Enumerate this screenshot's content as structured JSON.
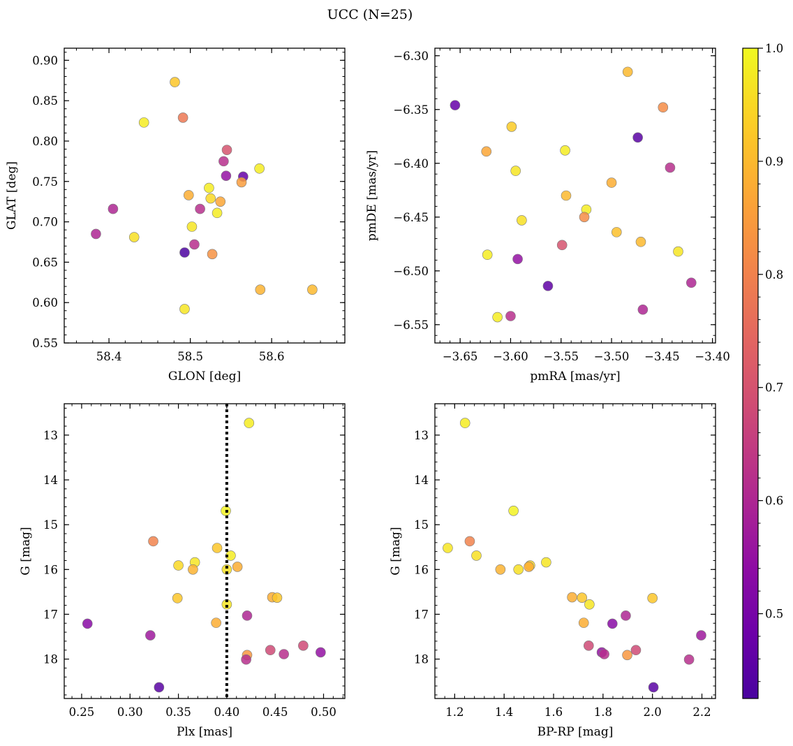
{
  "title": "UCC (N=25)",
  "colorbar": {
    "colormap": "plasma",
    "range": [
      0.425,
      1.0
    ],
    "ticks": [
      0.5,
      0.6,
      0.7,
      0.8,
      0.9,
      1.0
    ],
    "tick_labels": [
      "0.5",
      "0.6",
      "0.7",
      "0.8",
      "0.9",
      "1.0"
    ]
  },
  "chart_data": [
    {
      "type": "scatter",
      "xlabel": "GLON [deg]",
      "ylabel": "GLAT [deg]",
      "xlim": [
        58.345,
        58.69
      ],
      "ylim": [
        0.55,
        0.915
      ],
      "xticks": [
        58.4,
        58.5,
        58.6
      ],
      "xtick_labels": [
        "58.4",
        "58.5",
        "58.6"
      ],
      "yticks": [
        0.55,
        0.6,
        0.65,
        0.7,
        0.75,
        0.8,
        0.85,
        0.9
      ],
      "ytick_labels": [
        "0.55",
        "0.60",
        "0.65",
        "0.70",
        "0.75",
        "0.80",
        "0.85",
        "0.90"
      ],
      "invert_y": false,
      "points": [
        {
          "x": 58.481,
          "y": 0.873,
          "c": 0.92
        },
        {
          "x": 58.443,
          "y": 0.823,
          "c": 0.98
        },
        {
          "x": 58.491,
          "y": 0.829,
          "c": 0.78
        },
        {
          "x": 58.545,
          "y": 0.789,
          "c": 0.7
        },
        {
          "x": 58.541,
          "y": 0.775,
          "c": 0.62
        },
        {
          "x": 58.585,
          "y": 0.766,
          "c": 0.98
        },
        {
          "x": 58.565,
          "y": 0.756,
          "c": 0.47
        },
        {
          "x": 58.544,
          "y": 0.757,
          "c": 0.55
        },
        {
          "x": 58.563,
          "y": 0.749,
          "c": 0.85
        },
        {
          "x": 58.523,
          "y": 0.742,
          "c": 0.98
        },
        {
          "x": 58.498,
          "y": 0.733,
          "c": 0.88
        },
        {
          "x": 58.525,
          "y": 0.729,
          "c": 0.95
        },
        {
          "x": 58.537,
          "y": 0.725,
          "c": 0.87
        },
        {
          "x": 58.512,
          "y": 0.716,
          "c": 0.62
        },
        {
          "x": 58.405,
          "y": 0.716,
          "c": 0.6
        },
        {
          "x": 58.533,
          "y": 0.711,
          "c": 0.98
        },
        {
          "x": 58.502,
          "y": 0.694,
          "c": 0.97
        },
        {
          "x": 58.384,
          "y": 0.685,
          "c": 0.6
        },
        {
          "x": 58.431,
          "y": 0.681,
          "c": 0.96
        },
        {
          "x": 58.505,
          "y": 0.672,
          "c": 0.62
        },
        {
          "x": 58.493,
          "y": 0.662,
          "c": 0.43
        },
        {
          "x": 58.527,
          "y": 0.66,
          "c": 0.83
        },
        {
          "x": 58.586,
          "y": 0.616,
          "c": 0.89
        },
        {
          "x": 58.65,
          "y": 0.616,
          "c": 0.9
        },
        {
          "x": 58.493,
          "y": 0.592,
          "c": 0.97
        }
      ]
    },
    {
      "type": "scatter",
      "xlabel": "pmRA [mas/yr]",
      "ylabel": "pmDE [mas/yr]",
      "xlim": [
        -3.675,
        -3.397
      ],
      "ylim": [
        -6.567,
        -6.293
      ],
      "xticks": [
        -3.65,
        -3.6,
        -3.55,
        -3.5,
        -3.45,
        -3.4
      ],
      "xtick_labels": [
        "−3.65",
        "−3.60",
        "−3.55",
        "−3.50",
        "−3.45",
        "−3.40"
      ],
      "yticks": [
        -6.55,
        -6.5,
        -6.45,
        -6.4,
        -6.35,
        -6.3
      ],
      "ytick_labels": [
        "−6.55",
        "−6.50",
        "−6.45",
        "−6.40",
        "−6.35",
        "−6.30"
      ],
      "invert_y": false,
      "points": [
        {
          "x": -3.484,
          "y": -6.315,
          "c": 0.9
        },
        {
          "x": -3.655,
          "y": -6.346,
          "c": 0.47
        },
        {
          "x": -3.449,
          "y": -6.348,
          "c": 0.82
        },
        {
          "x": -3.599,
          "y": -6.366,
          "c": 0.93
        },
        {
          "x": -3.474,
          "y": -6.376,
          "c": 0.45
        },
        {
          "x": -3.624,
          "y": -6.389,
          "c": 0.87
        },
        {
          "x": -3.546,
          "y": -6.388,
          "c": 0.98
        },
        {
          "x": -3.442,
          "y": -6.404,
          "c": 0.62
        },
        {
          "x": -3.595,
          "y": -6.407,
          "c": 0.97
        },
        {
          "x": -3.5,
          "y": -6.418,
          "c": 0.88
        },
        {
          "x": -3.545,
          "y": -6.43,
          "c": 0.9
        },
        {
          "x": -3.525,
          "y": -6.443,
          "c": 0.98
        },
        {
          "x": -3.527,
          "y": -6.45,
          "c": 0.82
        },
        {
          "x": -3.589,
          "y": -6.453,
          "c": 0.96
        },
        {
          "x": -3.495,
          "y": -6.464,
          "c": 0.91
        },
        {
          "x": -3.471,
          "y": -6.473,
          "c": 0.9
        },
        {
          "x": -3.549,
          "y": -6.476,
          "c": 0.7
        },
        {
          "x": -3.434,
          "y": -6.482,
          "c": 0.97
        },
        {
          "x": -3.623,
          "y": -6.485,
          "c": 0.98
        },
        {
          "x": -3.593,
          "y": -6.489,
          "c": 0.55
        },
        {
          "x": -3.421,
          "y": -6.511,
          "c": 0.6
        },
        {
          "x": -3.563,
          "y": -6.514,
          "c": 0.46
        },
        {
          "x": -3.469,
          "y": -6.536,
          "c": 0.6
        },
        {
          "x": -3.6,
          "y": -6.542,
          "c": 0.62
        },
        {
          "x": -3.613,
          "y": -6.543,
          "c": 0.98
        }
      ]
    },
    {
      "type": "scatter",
      "xlabel": "Plx [mas]",
      "ylabel": "G [mag]",
      "xlim": [
        0.232,
        0.522
      ],
      "ylim": [
        12.3,
        18.88
      ],
      "xticks": [
        0.25,
        0.3,
        0.35,
        0.4,
        0.45,
        0.5
      ],
      "xtick_labels": [
        "0.25",
        "0.30",
        "0.35",
        "0.40",
        "0.45",
        "0.50"
      ],
      "yticks": [
        13,
        14,
        15,
        16,
        17,
        18
      ],
      "ytick_labels": [
        "13",
        "14",
        "15",
        "16",
        "17",
        "18"
      ],
      "invert_y": true,
      "vline": {
        "x": 0.4,
        "style": "dotted"
      },
      "points": [
        {
          "x": 0.423,
          "y": 12.73,
          "c": 0.98
        },
        {
          "x": 0.399,
          "y": 14.69,
          "c": 0.99
        },
        {
          "x": 0.324,
          "y": 15.37,
          "c": 0.8
        },
        {
          "x": 0.39,
          "y": 15.52,
          "c": 0.92
        },
        {
          "x": 0.404,
          "y": 15.69,
          "c": 0.98
        },
        {
          "x": 0.367,
          "y": 15.84,
          "c": 0.97
        },
        {
          "x": 0.35,
          "y": 15.91,
          "c": 0.95
        },
        {
          "x": 0.411,
          "y": 15.94,
          "c": 0.88
        },
        {
          "x": 0.365,
          "y": 16.0,
          "c": 0.89
        },
        {
          "x": 0.4,
          "y": 16.0,
          "c": 0.96
        },
        {
          "x": 0.349,
          "y": 16.64,
          "c": 0.92
        },
        {
          "x": 0.447,
          "y": 16.62,
          "c": 0.88
        },
        {
          "x": 0.452,
          "y": 16.63,
          "c": 0.92
        },
        {
          "x": 0.4,
          "y": 16.78,
          "c": 0.97
        },
        {
          "x": 0.421,
          "y": 17.03,
          "c": 0.6
        },
        {
          "x": 0.389,
          "y": 17.19,
          "c": 0.88
        },
        {
          "x": 0.256,
          "y": 17.21,
          "c": 0.53
        },
        {
          "x": 0.321,
          "y": 17.47,
          "c": 0.57
        },
        {
          "x": 0.479,
          "y": 17.7,
          "c": 0.68
        },
        {
          "x": 0.445,
          "y": 17.8,
          "c": 0.68
        },
        {
          "x": 0.497,
          "y": 17.85,
          "c": 0.55
        },
        {
          "x": 0.459,
          "y": 17.89,
          "c": 0.62
        },
        {
          "x": 0.421,
          "y": 17.91,
          "c": 0.84
        },
        {
          "x": 0.42,
          "y": 18.01,
          "c": 0.62
        },
        {
          "x": 0.33,
          "y": 18.63,
          "c": 0.45
        }
      ]
    },
    {
      "type": "scatter",
      "xlabel": "BP-RP [mag]",
      "ylabel": "G [mag]",
      "xlim": [
        1.12,
        2.255
      ],
      "ylim": [
        12.3,
        18.88
      ],
      "xticks": [
        1.2,
        1.4,
        1.6,
        1.8,
        2.0,
        2.2
      ],
      "xtick_labels": [
        "1.2",
        "1.4",
        "1.6",
        "1.8",
        "2.0",
        "2.2"
      ],
      "yticks": [
        13,
        14,
        15,
        16,
        17,
        18
      ],
      "ytick_labels": [
        "13",
        "14",
        "15",
        "16",
        "17",
        "18"
      ],
      "invert_y": true,
      "points": [
        {
          "x": 1.242,
          "y": 12.73,
          "c": 0.98
        },
        {
          "x": 1.438,
          "y": 14.69,
          "c": 0.99
        },
        {
          "x": 1.261,
          "y": 15.37,
          "c": 0.8
        },
        {
          "x": 1.172,
          "y": 15.52,
          "c": 0.97
        },
        {
          "x": 1.288,
          "y": 15.69,
          "c": 0.96
        },
        {
          "x": 1.57,
          "y": 15.84,
          "c": 0.97
        },
        {
          "x": 1.505,
          "y": 15.91,
          "c": 0.95
        },
        {
          "x": 1.5,
          "y": 15.94,
          "c": 0.88
        },
        {
          "x": 1.385,
          "y": 16.0,
          "c": 0.89
        },
        {
          "x": 1.458,
          "y": 16.0,
          "c": 0.96
        },
        {
          "x": 1.675,
          "y": 16.62,
          "c": 0.88
        },
        {
          "x": 1.715,
          "y": 16.63,
          "c": 0.92
        },
        {
          "x": 2.0,
          "y": 16.64,
          "c": 0.92
        },
        {
          "x": 1.745,
          "y": 16.78,
          "c": 0.97
        },
        {
          "x": 1.892,
          "y": 17.03,
          "c": 0.6
        },
        {
          "x": 1.722,
          "y": 17.19,
          "c": 0.88
        },
        {
          "x": 1.838,
          "y": 17.21,
          "c": 0.53
        },
        {
          "x": 2.197,
          "y": 17.47,
          "c": 0.57
        },
        {
          "x": 1.742,
          "y": 17.7,
          "c": 0.68
        },
        {
          "x": 1.933,
          "y": 17.8,
          "c": 0.68
        },
        {
          "x": 1.795,
          "y": 17.85,
          "c": 0.55
        },
        {
          "x": 1.805,
          "y": 17.89,
          "c": 0.62
        },
        {
          "x": 1.898,
          "y": 17.91,
          "c": 0.84
        },
        {
          "x": 2.148,
          "y": 18.01,
          "c": 0.62
        },
        {
          "x": 2.004,
          "y": 18.63,
          "c": 0.45
        }
      ]
    }
  ]
}
